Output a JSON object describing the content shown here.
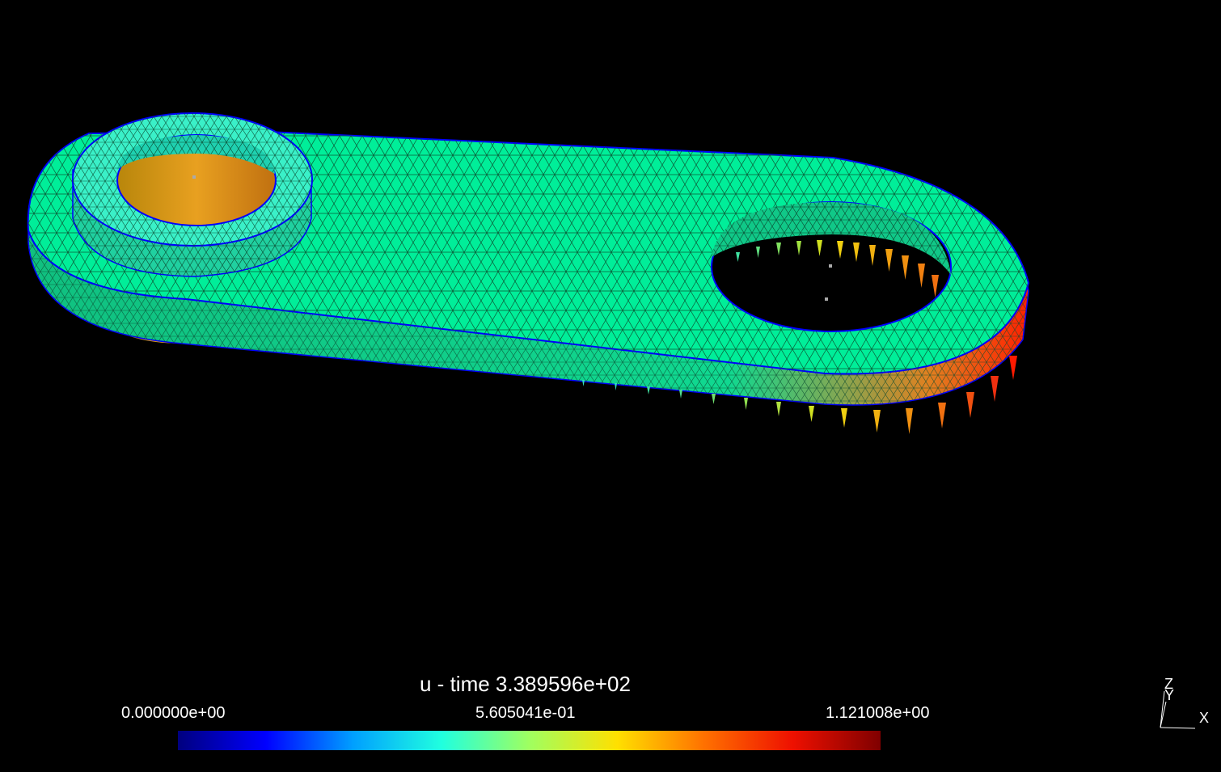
{
  "viewer": {
    "background": "#000000",
    "mesh_color": "#00ee99",
    "edge_color": "#0000ff"
  },
  "legend": {
    "title": "u - time 3.389596e+02",
    "min_label": "0.000000e+00",
    "mid_label": "5.605041e-01",
    "max_label": "1.121008e+00",
    "colormap": [
      "#00007f",
      "#0000ff",
      "#00a0ff",
      "#20ffdf",
      "#9fff60",
      "#ffe000",
      "#ff7000",
      "#ee1000",
      "#7f0000"
    ]
  },
  "axes": {
    "z": "Z",
    "y": "Y",
    "x": "X"
  }
}
